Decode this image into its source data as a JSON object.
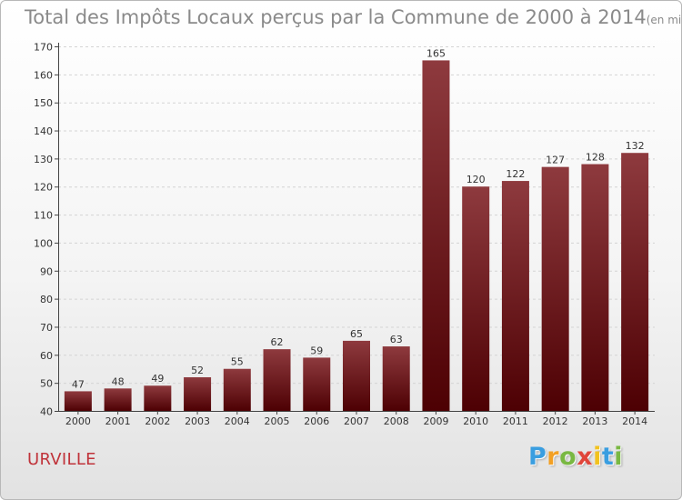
{
  "page": {
    "title": "Total des Impôts Locaux perçus par la Commune de 2000 à 2014",
    "title_unit": "(en milliers d'€)",
    "commune": "URVILLE",
    "logo": {
      "letters": [
        "P",
        "r",
        "o",
        "x",
        "i",
        "t",
        "i"
      ],
      "colors": [
        "#3a9ee0",
        "#f2a024",
        "#79b842",
        "#e0453a",
        "#f2c21e",
        "#3a9ee0",
        "#79b842"
      ]
    }
  },
  "colors": {
    "bar_top": "#8e3a3e",
    "bar_bottom": "#4d0003",
    "axis": "#444444",
    "grid": "#d4d4d4",
    "label": "#333333"
  },
  "chart_data": {
    "type": "bar",
    "title": "Total des Impôts Locaux perçus par la Commune de 2000 à 2014",
    "xlabel": "",
    "ylabel": "",
    "categories": [
      "2000",
      "2001",
      "2002",
      "2003",
      "2004",
      "2005",
      "2006",
      "2007",
      "2008",
      "2009",
      "2010",
      "2011",
      "2012",
      "2013",
      "2014"
    ],
    "values": [
      47,
      48,
      49,
      52,
      55,
      62,
      59,
      65,
      63,
      165,
      120,
      122,
      127,
      128,
      132
    ],
    "ylim": [
      40,
      170
    ],
    "yticks": [
      40,
      50,
      60,
      70,
      80,
      90,
      100,
      110,
      120,
      130,
      140,
      150,
      160,
      170
    ],
    "grid": "horizontal-dashed",
    "data_labels": true
  }
}
